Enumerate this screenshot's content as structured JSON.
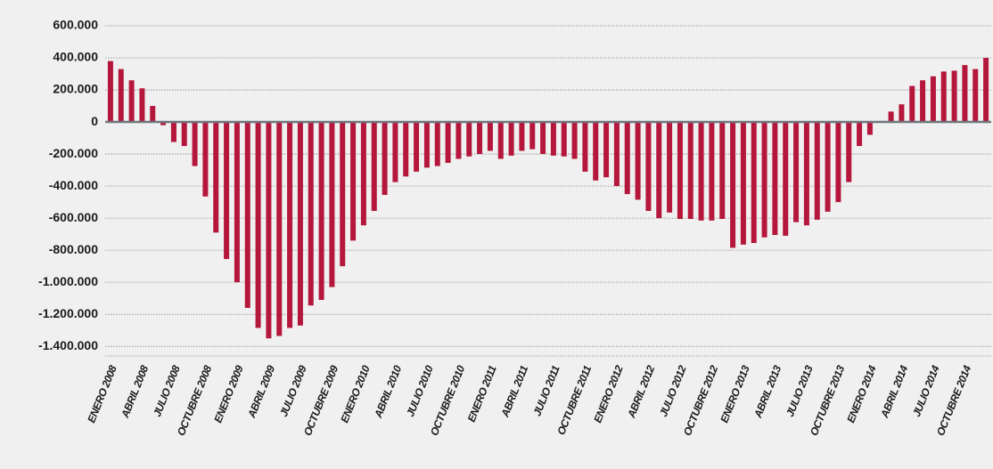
{
  "chart_data": {
    "type": "bar",
    "color": "#b5163c",
    "grid": true,
    "categories": [
      "ENERO 2008",
      null,
      null,
      "ABRIL 2008",
      null,
      null,
      "JULIO 2008",
      null,
      null,
      "OCTUBRE 2008",
      null,
      null,
      "ENERO 2009",
      null,
      null,
      "ABRIL 2009",
      null,
      null,
      "JULIO 2009",
      null,
      null,
      "OCTUBRE 2009",
      null,
      null,
      "ENERO 2010",
      null,
      null,
      "ABRIL 2010",
      null,
      null,
      "JULIO 2010",
      null,
      null,
      "OCTUBRE 2010",
      null,
      null,
      "ENERO 2011",
      null,
      null,
      "ABRIL 2011",
      null,
      null,
      "JULIO 2011",
      null,
      null,
      "OCTUBRE 2011",
      null,
      null,
      "ENERO 2012",
      null,
      null,
      "ABRIL 2012",
      null,
      null,
      "JULIO 2012",
      null,
      null,
      "OCTUBRE 2012",
      null,
      null,
      "ENERO 2013",
      null,
      null,
      "ABRIL 2013",
      null,
      null,
      "JULIO 2013",
      null,
      null,
      "OCTUBRE 2013",
      null,
      null,
      "ENERO 2014",
      null,
      null,
      "ABRIL 2014",
      null,
      null,
      "JULIO 2014",
      null,
      null,
      "OCTUBRE 2014",
      null,
      null
    ],
    "values": [
      380000,
      330000,
      260000,
      210000,
      100000,
      -20000,
      -125000,
      -150000,
      -275000,
      -465000,
      -690000,
      -855000,
      -1000000,
      -1160000,
      -1285000,
      -1350000,
      -1335000,
      -1285000,
      -1270000,
      -1145000,
      -1110000,
      -1030000,
      -900000,
      -740000,
      -645000,
      -555000,
      -455000,
      -375000,
      -340000,
      -310000,
      -285000,
      -275000,
      -255000,
      -230000,
      -215000,
      -200000,
      -180000,
      -230000,
      -210000,
      -180000,
      -170000,
      -200000,
      -210000,
      -215000,
      -230000,
      -310000,
      -365000,
      -345000,
      -400000,
      -450000,
      -485000,
      -555000,
      -600000,
      -565000,
      -605000,
      -605000,
      -615000,
      -615000,
      -605000,
      -785000,
      -765000,
      -755000,
      -720000,
      -705000,
      -710000,
      -625000,
      -645000,
      -610000,
      -560000,
      -500000,
      -375000,
      -150000,
      -80000,
      0,
      65000,
      110000,
      225000,
      260000,
      285000,
      315000,
      320000,
      355000,
      330000,
      400000
    ],
    "ylim": [
      -1460000,
      650000
    ],
    "yticks": [
      {
        "value": 600000,
        "label": "600.000"
      },
      {
        "value": 400000,
        "label": "400.000"
      },
      {
        "value": 200000,
        "label": "200.000"
      },
      0,
      {
        "value": -200000,
        "label": "-200.000"
      },
      {
        "value": -400000,
        "label": "-400.000"
      },
      {
        "value": -600000,
        "label": "-600.000"
      },
      {
        "value": -800000,
        "label": "-800.000"
      },
      {
        "value": -1000000,
        "label": "-1.000.000"
      },
      {
        "value": -1200000,
        "label": "-1.200.000"
      },
      {
        "value": -1400000,
        "label": "-1.400.000"
      }
    ]
  }
}
